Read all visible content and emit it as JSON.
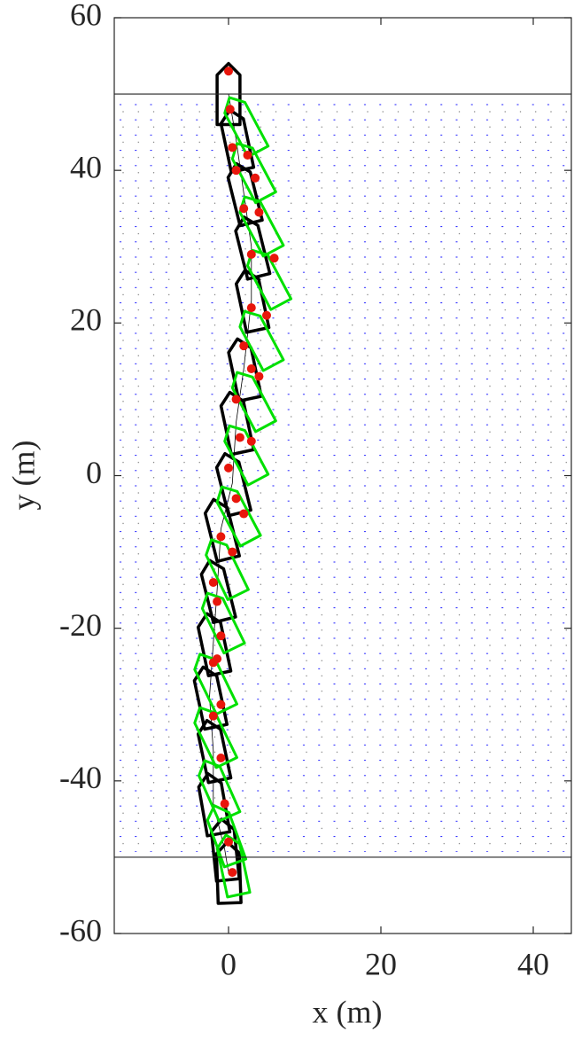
{
  "chart_data": {
    "type": "trajectory",
    "xlabel": "x (m)",
    "ylabel": "y (m)",
    "xlim": [
      -15,
      45
    ],
    "ylim": [
      -60,
      60
    ],
    "xticks": [
      0,
      20,
      40
    ],
    "yticks": [
      -60,
      -40,
      -20,
      0,
      20,
      40,
      60
    ],
    "hlines": [
      50,
      -50
    ],
    "series": [
      {
        "color": "#000000",
        "x": [
          0,
          1,
          2,
          3,
          3,
          2,
          1,
          0.5,
          -1,
          -1.5,
          -2,
          -2.5,
          -2,
          -2,
          -0.5,
          0
        ],
        "values": [
          50,
          44,
          37,
          30,
          23,
          14,
          7,
          -1,
          -7,
          -15,
          -22,
          -29,
          -36,
          -43,
          -49,
          -52
        ],
        "heading": [
          0,
          12,
          14,
          14,
          12,
          12,
          12,
          14,
          14,
          14,
          12,
          12,
          12,
          10,
          6,
          2
        ]
      },
      {
        "color": "#00e000",
        "x": [
          2,
          3,
          4,
          5,
          4,
          3,
          2,
          1,
          -0.5,
          -1,
          -2,
          -2,
          -1.5,
          -0.5,
          0.5
        ],
        "values": [
          46,
          40,
          33,
          26,
          18,
          10,
          3,
          -5,
          -12,
          -19,
          -27,
          -34,
          -41,
          -47,
          -51
        ],
        "heading": [
          28,
          28,
          28,
          28,
          28,
          28,
          28,
          28,
          26,
          26,
          26,
          26,
          24,
          20,
          12
        ]
      },
      {
        "color": "#e8160c",
        "x": [
          0,
          0.2,
          0.5,
          1,
          2.5,
          3.5,
          2,
          4,
          3,
          6,
          3,
          5,
          2,
          3,
          4,
          1,
          1.5,
          3,
          0,
          1,
          2,
          -1,
          0.5,
          -1.5,
          -2,
          -1,
          -1.5,
          -2,
          -1,
          -2,
          -1,
          -0.5,
          0,
          0.5
        ],
        "values": [
          53,
          48,
          43,
          40,
          42,
          39,
          35,
          34.5,
          29,
          28.5,
          22,
          21,
          17,
          14,
          13,
          10,
          5,
          4.5,
          1,
          -3,
          -5,
          -8,
          -10,
          -16.5,
          -14,
          -21,
          -24,
          -24.5,
          -30,
          -31.5,
          -37,
          -43,
          -48,
          -52
        ]
      }
    ]
  }
}
